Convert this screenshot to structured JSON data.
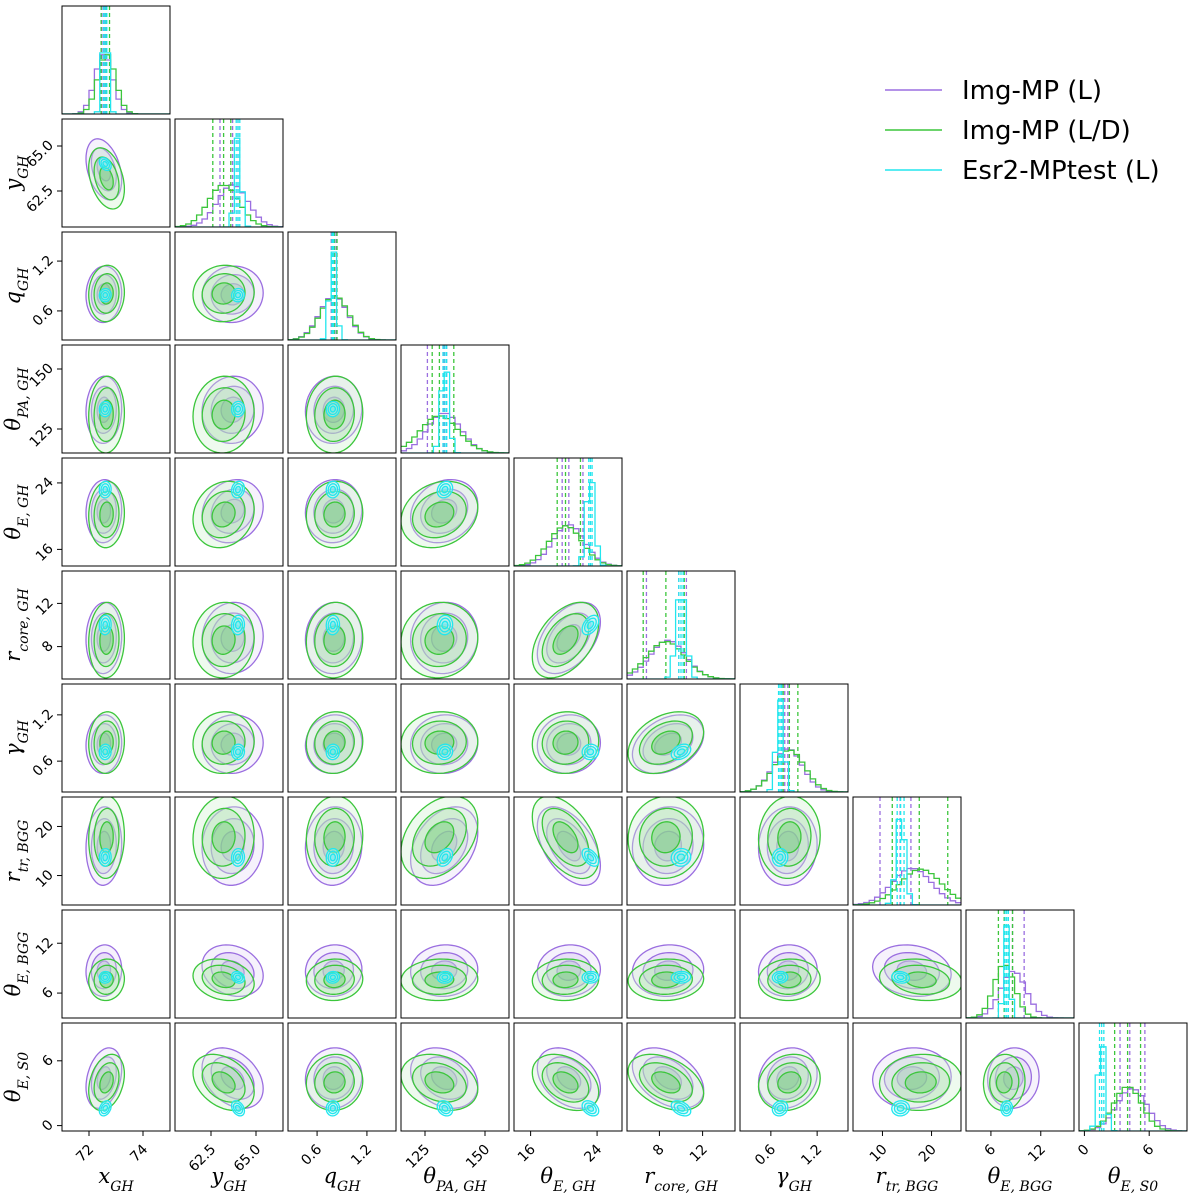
{
  "chart_data": {
    "type": "corner",
    "params": [
      {
        "base": "x",
        "sub": "GH",
        "range": [
          71.0,
          75.0
        ],
        "ticks": [
          72,
          74
        ],
        "tick_labels": [
          "72",
          "74"
        ]
      },
      {
        "base": "y",
        "sub": "GH",
        "range": [
          60.5,
          66.5
        ],
        "ticks": [
          62.5,
          65.0
        ],
        "tick_labels": [
          "62.5",
          "65.0"
        ]
      },
      {
        "base": "q",
        "sub": "GH",
        "range": [
          0.25,
          1.55
        ],
        "ticks": [
          0.6,
          1.2
        ],
        "tick_labels": [
          "0.6",
          "1.2"
        ]
      },
      {
        "base": "θ",
        "sub": "PA, GH",
        "range": [
          115,
          160
        ],
        "ticks": [
          125,
          150
        ],
        "tick_labels": [
          "125",
          "150"
        ]
      },
      {
        "base": "θ",
        "sub": "E, GH",
        "range": [
          14,
          27
        ],
        "ticks": [
          16,
          24
        ],
        "tick_labels": [
          "16",
          "24"
        ]
      },
      {
        "base": "r",
        "sub": "core, GH",
        "range": [
          5,
          15
        ],
        "ticks": [
          8,
          12
        ],
        "tick_labels": [
          "8",
          "12"
        ]
      },
      {
        "base": "γ",
        "sub": "GH",
        "range": [
          0.2,
          1.6
        ],
        "ticks": [
          0.6,
          1.2
        ],
        "tick_labels": [
          "0.6",
          "1.2"
        ]
      },
      {
        "base": "r",
        "sub": "tr, BGG",
        "range": [
          4,
          26
        ],
        "ticks": [
          10,
          20
        ],
        "tick_labels": [
          "10",
          "20"
        ]
      },
      {
        "base": "θ",
        "sub": "E, BGG",
        "range": [
          3,
          16
        ],
        "ticks": [
          6,
          12
        ],
        "tick_labels": [
          "6",
          "12"
        ]
      },
      {
        "base": "θ",
        "sub": "E, S0",
        "range": [
          -0.5,
          9.5
        ],
        "ticks": [
          0,
          6
        ],
        "tick_labels": [
          "0",
          "6"
        ]
      }
    ],
    "series": [
      {
        "name": "Img-MP (L)",
        "color": "#9b6fe0",
        "center": [
          72.55,
          63.7,
          0.8,
          133.0,
          20.6,
          8.8,
          0.82,
          16.0,
          8.7,
          4.4
        ],
        "sigma": [
          0.33,
          0.85,
          0.17,
          7.0,
          1.9,
          1.65,
          0.19,
          4.0,
          1.55,
          1.4
        ],
        "hist_quantiles": [
          [
            72.48,
            72.55,
            72.62
          ],
          [
            63.0,
            63.7,
            64.0
          ],
          [
            0.77,
            0.8,
            0.83
          ],
          [
            126.0,
            133.0,
            134.0
          ],
          [
            19.8,
            20.6,
            22.3
          ],
          [
            6.8,
            9.8,
            10.5
          ],
          [
            0.74,
            0.78,
            0.82
          ],
          [
            9.5,
            13.6,
            15.8
          ],
          [
            7.6,
            8.6,
            10.0
          ],
          [
            3.3,
            4.2,
            5.6
          ]
        ]
      },
      {
        "name": "Img-MP (L/D)",
        "color": "#3cc63c",
        "center": [
          72.65,
          63.2,
          0.81,
          131.0,
          20.2,
          8.6,
          0.84,
          17.8,
          7.6,
          4.0
        ],
        "sigma": [
          0.33,
          0.85,
          0.17,
          8.0,
          2.0,
          1.75,
          0.2,
          4.2,
          1.25,
          1.3
        ],
        "hist_quantiles": [
          [
            72.45,
            72.65,
            72.76
          ],
          [
            62.6,
            63.2,
            63.6
          ],
          [
            0.78,
            0.81,
            0.84
          ],
          [
            128.0,
            131.0,
            137.0
          ],
          [
            19.2,
            20.2,
            22.0
          ],
          [
            6.5,
            8.6,
            10.3
          ],
          [
            0.76,
            0.84,
            0.95
          ],
          [
            12.0,
            17.5,
            23.3
          ],
          [
            6.9,
            7.6,
            8.6
          ],
          [
            2.8,
            4.0,
            5.2
          ]
        ]
      },
      {
        "name": "Esr2-MPtest (L)",
        "color": "#22e6ee",
        "center": [
          72.6,
          64.0,
          0.79,
          133.3,
          23.2,
          10.0,
          0.72,
          13.7,
          7.9,
          1.6
        ],
        "sigma": [
          0.11,
          0.18,
          0.04,
          1.6,
          0.5,
          0.45,
          0.05,
          0.9,
          0.35,
          0.35
        ],
        "hist_quantiles": [
          [
            72.54,
            72.6,
            72.66
          ],
          [
            63.9,
            64.0,
            64.1
          ],
          [
            0.78,
            0.79,
            0.8
          ],
          [
            132.5,
            133.3,
            134.0
          ],
          [
            23.0,
            23.2,
            23.4
          ],
          [
            9.8,
            10.0,
            10.2
          ],
          [
            0.7,
            0.72,
            0.74
          ],
          [
            13.0,
            13.7,
            14.4
          ],
          [
            7.7,
            7.9,
            8.1
          ],
          [
            1.4,
            1.6,
            1.8
          ]
        ]
      }
    ],
    "legend": {
      "placement": "top-right",
      "entries": [
        "Img-MP (L)",
        "Img-MP (L/D)",
        "Esr2-MPtest (L)"
      ]
    }
  }
}
